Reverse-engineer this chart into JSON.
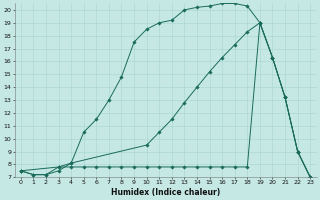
{
  "xlabel": "Humidex (Indice chaleur)",
  "bg_color": "#c5e8e5",
  "line_color": "#1a6b5a",
  "grid_color": "#a8d5d0",
  "xlim": [
    -0.5,
    23.5
  ],
  "ylim": [
    7,
    20.5
  ],
  "xticks": [
    0,
    1,
    2,
    3,
    4,
    5,
    6,
    7,
    8,
    9,
    10,
    11,
    12,
    13,
    14,
    15,
    16,
    17,
    18,
    19,
    20,
    21,
    22,
    23
  ],
  "yticks": [
    7,
    8,
    9,
    10,
    11,
    12,
    13,
    14,
    15,
    16,
    17,
    18,
    19,
    20
  ],
  "curve1_x": [
    0,
    1,
    2,
    3,
    4,
    5,
    6,
    7,
    8,
    9,
    10,
    11,
    12,
    13,
    14,
    15,
    16,
    17,
    18,
    19,
    20,
    21,
    22,
    23
  ],
  "curve1_y": [
    7.5,
    7.2,
    7.2,
    7.5,
    8.1,
    10.5,
    11.5,
    13.0,
    14.8,
    17.5,
    18.5,
    19.0,
    19.2,
    20.0,
    20.2,
    20.3,
    20.5,
    20.5,
    20.3,
    19.0,
    16.3,
    13.2,
    9.0,
    7.0
  ],
  "curve2_x": [
    0,
    1,
    2,
    3,
    4,
    5,
    6,
    7,
    8,
    9,
    10,
    11,
    12,
    13,
    14,
    15,
    16,
    17,
    18,
    19,
    20,
    21,
    22,
    23
  ],
  "curve2_y": [
    7.5,
    7.2,
    7.2,
    7.8,
    7.8,
    7.8,
    7.8,
    7.8,
    7.8,
    7.8,
    7.8,
    7.8,
    7.8,
    7.8,
    7.8,
    7.8,
    7.8,
    7.8,
    7.8,
    19.0,
    16.3,
    13.2,
    9.0,
    7.0
  ],
  "curve3_x": [
    0,
    3,
    4,
    10,
    11,
    12,
    13,
    14,
    15,
    16,
    17,
    18,
    19,
    20,
    21,
    22,
    23
  ],
  "curve3_y": [
    7.5,
    7.8,
    8.1,
    9.5,
    10.5,
    11.5,
    12.8,
    14.0,
    15.2,
    16.3,
    17.3,
    18.3,
    19.0,
    16.3,
    13.2,
    9.0,
    7.0
  ]
}
